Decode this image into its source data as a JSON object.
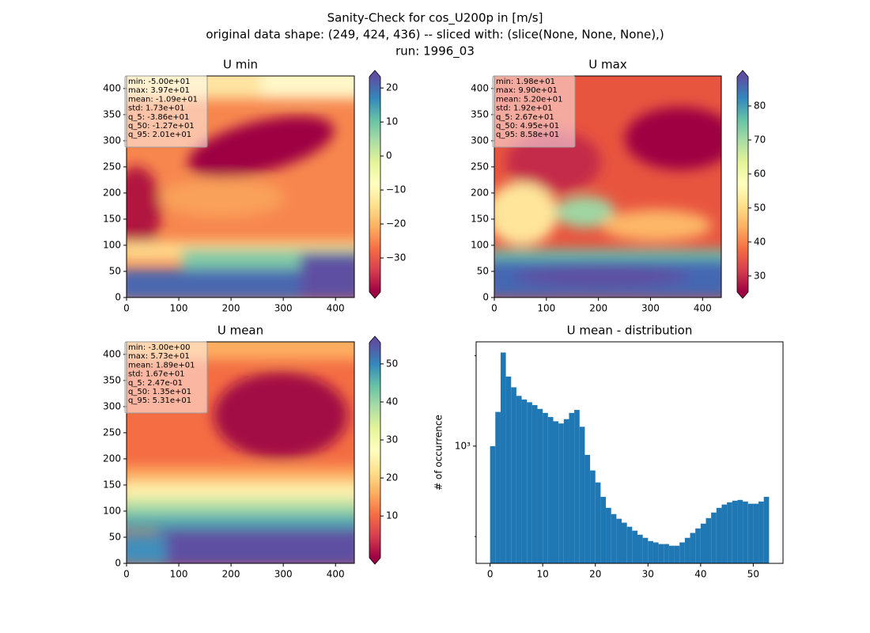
{
  "figure": {
    "title_lines": [
      "Sanity-Check for cos_U200p in [m/s]",
      "original data shape: (249, 424, 436) -- sliced with: (slice(None, None, None),)",
      "run: 1996_03"
    ]
  },
  "chart_data": [
    {
      "type": "heatmap",
      "title": "U min",
      "xlim": [
        0,
        436
      ],
      "ylim": [
        0,
        424
      ],
      "xticks": [
        0,
        100,
        200,
        300,
        400
      ],
      "yticks": [
        0,
        50,
        100,
        150,
        200,
        250,
        300,
        350,
        400
      ],
      "clim": [
        -40,
        23.3
      ],
      "cticks": [
        {
          "value": -30,
          "label": "−30"
        },
        {
          "value": -20,
          "label": "−20"
        },
        {
          "value": -10,
          "label": "−10"
        },
        0,
        10,
        20
      ],
      "stats": [
        "min: -5.00e+01",
        "max: 3.97e+01",
        "mean: -1.09e+01",
        "std: 1.73e+01",
        "q_5: -3.86e+01",
        "q_50: -1.27e+01",
        "q_95: 2.01e+01"
      ]
    },
    {
      "type": "heatmap",
      "title": "U max",
      "xlim": [
        0,
        436
      ],
      "ylim": [
        0,
        424
      ],
      "xticks": [
        0,
        100,
        200,
        300,
        400
      ],
      "yticks": [
        0,
        50,
        100,
        150,
        200,
        250,
        300,
        350,
        400
      ],
      "clim": [
        25.3,
        88.6
      ],
      "cticks": [
        30,
        40,
        50,
        60,
        70,
        80
      ],
      "stats": [
        "min: 1.98e+01",
        "max: 9.90e+01",
        "mean: 5.20e+01",
        "std: 1.92e+01",
        "q_5: 2.67e+01",
        "q_50: 4.95e+01",
        "q_95: 8.58e+01"
      ]
    },
    {
      "type": "heatmap",
      "title": "U mean",
      "xlim": [
        0,
        436
      ],
      "ylim": [
        0,
        424
      ],
      "xticks": [
        0,
        100,
        200,
        300,
        400
      ],
      "yticks": [
        0,
        50,
        100,
        150,
        200,
        250,
        300,
        350,
        400
      ],
      "clim": [
        -1,
        55.6
      ],
      "cticks": [
        10,
        20,
        30,
        40,
        50
      ],
      "stats": [
        "min: -3.00e+00",
        "max: 5.73e+01",
        "mean: 1.89e+01",
        "std: 1.67e+01",
        "q_5: 2.47e-01",
        "q_50: 1.35e+01",
        "q_95: 5.31e+01"
      ]
    },
    {
      "type": "histogram",
      "title": "U mean - distribution",
      "ylabel": "# of occurrence",
      "color": "#1f77b4",
      "log_y": true,
      "bins": [
        0,
        1,
        2,
        3,
        4,
        5,
        6,
        7,
        8,
        9,
        10,
        11,
        12,
        13,
        14,
        15,
        16,
        17,
        18,
        19,
        20,
        21,
        22,
        23,
        24,
        25,
        26,
        27,
        28,
        29,
        30,
        31,
        32,
        33,
        34,
        35,
        36,
        37,
        38,
        39,
        40,
        41,
        42,
        43,
        44,
        45,
        46,
        47,
        48,
        49,
        50,
        51,
        52,
        53
      ],
      "values": [
        1000,
        1300,
        2050,
        1705,
        1570,
        1470,
        1430,
        1400,
        1370,
        1330,
        1290,
        1250,
        1210,
        1190,
        1230,
        1290,
        1320,
        1160,
        935,
        830,
        757,
        678,
        623,
        594,
        573,
        556,
        539,
        523,
        507,
        495,
        483,
        478,
        472,
        472,
        466,
        466,
        478,
        495,
        514,
        532,
        552,
        576,
        601,
        623,
        639,
        650,
        658,
        662,
        654,
        643,
        643,
        654,
        678
      ],
      "xlim": [
        -2.65,
        55.65
      ],
      "xticks": [
        0,
        10,
        20,
        30,
        40,
        50
      ],
      "ylim": [
        407,
        2225
      ],
      "yticks": [
        {
          "value": 1000,
          "label": "10³"
        }
      ],
      "minor_yticks": [
        500,
        2000
      ]
    }
  ]
}
